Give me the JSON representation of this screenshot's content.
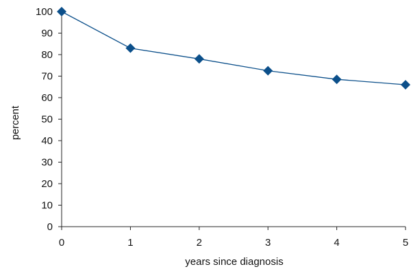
{
  "chart_data": {
    "type": "line",
    "title": "",
    "xlabel": "years since diagnosis",
    "ylabel": "percent",
    "xlim": [
      0,
      5
    ],
    "ylim": [
      0,
      100
    ],
    "x_ticks": [
      0,
      1,
      2,
      3,
      4,
      5
    ],
    "y_ticks": [
      0,
      10,
      20,
      30,
      40,
      50,
      60,
      70,
      80,
      90,
      100
    ],
    "grid": false,
    "legend": "none",
    "marker": "diamond",
    "colors": {
      "series": "#0b4f8a",
      "axis": "#222222",
      "text": "#111111"
    },
    "series": [
      {
        "x": [
          0,
          1,
          2,
          3,
          4,
          5
        ],
        "values": [
          100,
          83,
          78,
          72.5,
          68.5,
          66
        ]
      }
    ]
  }
}
